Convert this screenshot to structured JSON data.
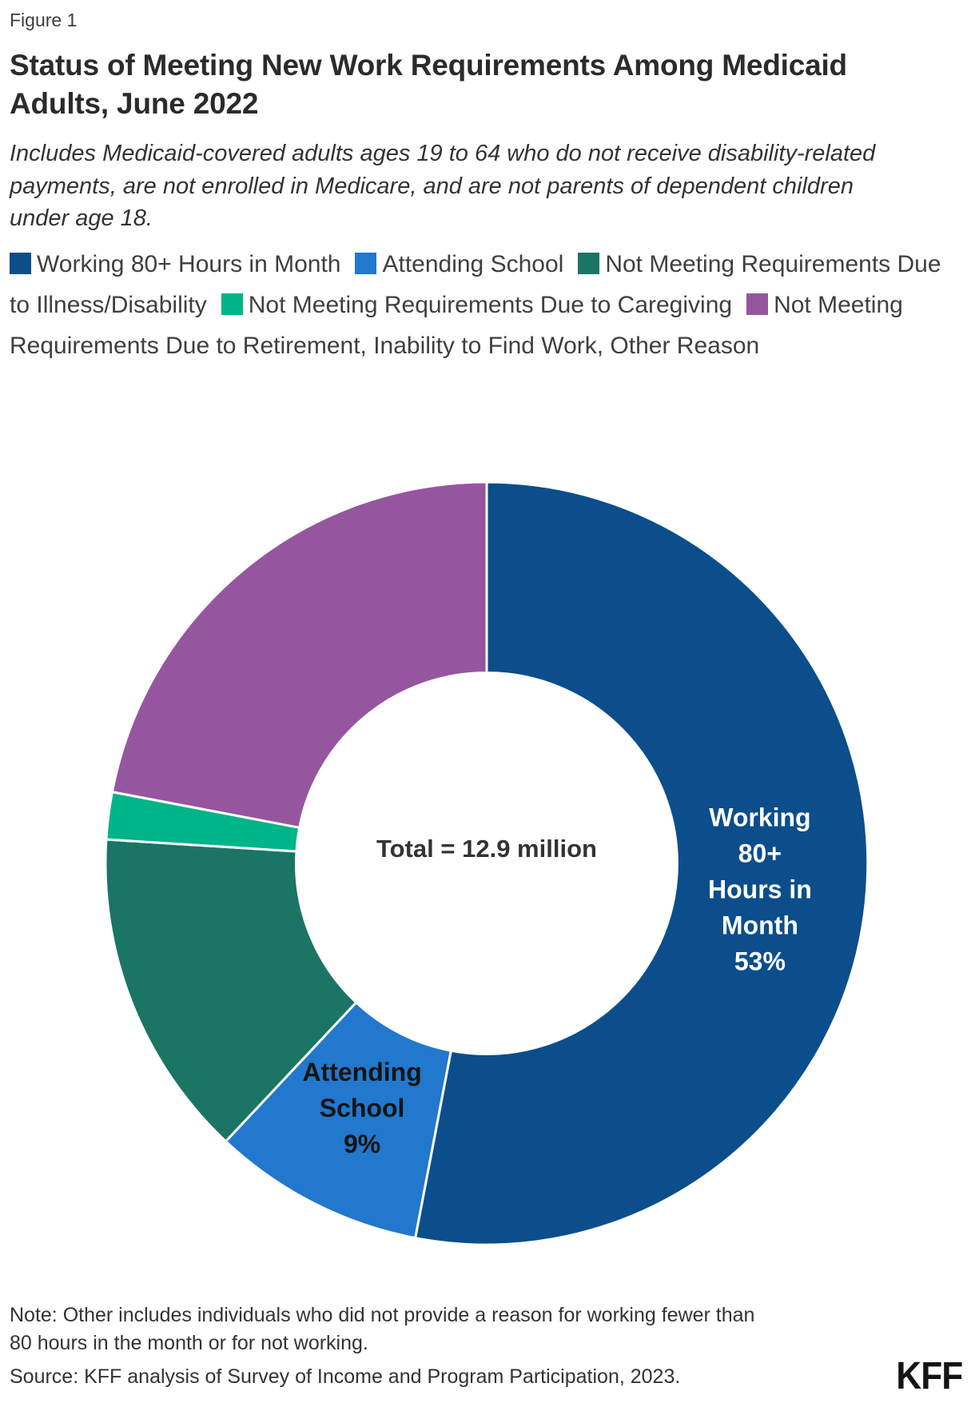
{
  "figure_label": "Figure 1",
  "title": "Status of Meeting New Work Requirements Among Medicaid Adults, June 2022",
  "subtitle": "Includes Medicaid-covered adults ages 19 to 64 who do not receive disability-related payments, are not enrolled in Medicare, and are not parents of dependent children under age 18.",
  "chart_data": {
    "type": "pie",
    "subtype": "donut",
    "title": "Status of Meeting New Work Requirements Among Medicaid Adults, June 2022",
    "center_label": "Total = 12.9 million",
    "start_angle_deg": 0,
    "direction": "clockwise",
    "inner_radius_ratio": 0.5,
    "legend_position": "top",
    "segments": [
      {
        "label": "Working 80+ Hours in Month",
        "value_pct": 53,
        "color": "#0b4e8b",
        "slice_label_lines": [
          "Working",
          "80+",
          "Hours in",
          "Month",
          "53%"
        ],
        "slice_label_color": "#ffffff"
      },
      {
        "label": "Attending School",
        "value_pct": 9,
        "color": "#2178cd",
        "slice_label_lines": [
          "Attending",
          "School",
          "9%"
        ],
        "slice_label_color": "#141414"
      },
      {
        "label": "Not Meeting Requirements Due to Illness/Disability",
        "value_pct": 14,
        "color": "#1a7565"
      },
      {
        "label": "Not Meeting Requirements Due to Caregiving",
        "value_pct": 2,
        "color": "#00b489"
      },
      {
        "label": "Not Meeting Requirements Due to Retirement, Inability to Find Work, Other Reason",
        "value_pct": 22,
        "color": "#95569f"
      }
    ]
  },
  "note": "Note: Other includes individuals who did not provide a reason for working fewer than 80 hours in the month or for not working.",
  "source": "Source: KFF analysis of Survey of Income and Program Participation, 2023.",
  "logo_text": "KFF",
  "colors": {
    "center_label": "#333333",
    "slice_separator": "#ffffff"
  }
}
